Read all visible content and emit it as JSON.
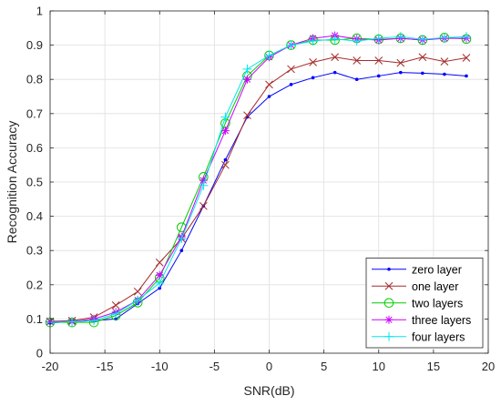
{
  "chart_data": {
    "type": "line",
    "title": "",
    "xlabel": "SNR(dB)",
    "ylabel": "Recognition Accuracy",
    "xlim": [
      -20,
      20
    ],
    "ylim": [
      0,
      1
    ],
    "xticks": [
      -20,
      -15,
      -10,
      -5,
      0,
      5,
      10,
      15,
      20
    ],
    "yticks": [
      0,
      0.1,
      0.2,
      0.3,
      0.4,
      0.5,
      0.6,
      0.7,
      0.8,
      0.9,
      1
    ],
    "grid": true,
    "legend_position": "bottom-right",
    "x": [
      -20,
      -18,
      -16,
      -14,
      -12,
      -10,
      -8,
      -6,
      -4,
      -2,
      0,
      2,
      4,
      6,
      8,
      10,
      12,
      14,
      16,
      18
    ],
    "series": [
      {
        "name": "zero layer",
        "color": "#0000ff",
        "marker": "dot",
        "values": [
          0.088,
          0.093,
          0.095,
          0.1,
          0.145,
          0.19,
          0.3,
          0.43,
          0.565,
          0.69,
          0.75,
          0.785,
          0.805,
          0.82,
          0.8,
          0.81,
          0.82,
          0.818,
          0.815,
          0.81
        ]
      },
      {
        "name": "one layer",
        "color": "#a52a2a",
        "marker": "x",
        "values": [
          0.093,
          0.095,
          0.105,
          0.14,
          0.18,
          0.265,
          0.335,
          0.43,
          0.55,
          0.695,
          0.785,
          0.83,
          0.85,
          0.865,
          0.855,
          0.855,
          0.848,
          0.865,
          0.852,
          0.863
        ]
      },
      {
        "name": "two layers",
        "color": "#00cc00",
        "marker": "circle",
        "values": [
          0.09,
          0.09,
          0.09,
          0.11,
          0.148,
          0.22,
          0.368,
          0.515,
          0.672,
          0.81,
          0.87,
          0.9,
          0.915,
          0.915,
          0.92,
          0.917,
          0.92,
          0.915,
          0.922,
          0.918
        ]
      },
      {
        "name": "three layers",
        "color": "#cc00ff",
        "marker": "asterisk",
        "values": [
          0.092,
          0.092,
          0.1,
          0.12,
          0.155,
          0.228,
          0.34,
          0.505,
          0.65,
          0.8,
          0.865,
          0.9,
          0.92,
          0.928,
          0.918,
          0.915,
          0.92,
          0.915,
          0.92,
          0.92
        ]
      },
      {
        "name": "four layers",
        "color": "#00e5ee",
        "marker": "plus",
        "values": [
          0.09,
          0.092,
          0.095,
          0.115,
          0.155,
          0.205,
          0.335,
          0.49,
          0.69,
          0.83,
          0.87,
          0.9,
          0.912,
          0.918,
          0.912,
          0.92,
          0.925,
          0.917,
          0.922,
          0.925
        ]
      }
    ]
  }
}
